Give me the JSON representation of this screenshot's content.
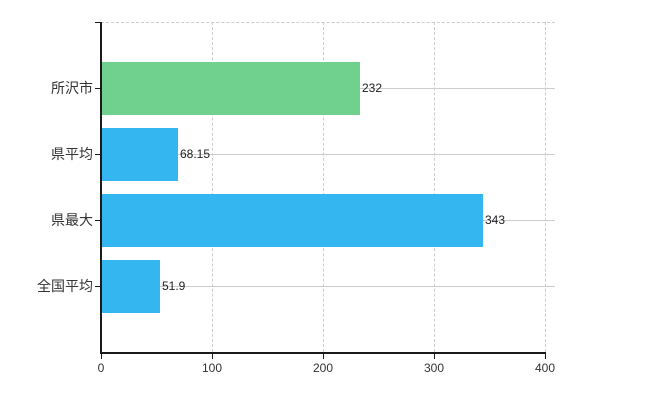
{
  "chart_data": {
    "type": "bar",
    "orientation": "horizontal",
    "title": "",
    "xlabel": "",
    "ylabel": "",
    "categories": [
      "所沢市",
      "県平均",
      "県最大",
      "全国平均"
    ],
    "values": [
      232,
      68.15,
      343,
      51.9
    ],
    "value_labels": [
      "232",
      "68.15",
      "343",
      "51.9"
    ],
    "bar_colors": [
      "#70d18e",
      "#34b7f0",
      "#34b7f0",
      "#34b7f0"
    ],
    "xlim": [
      0,
      400
    ],
    "xticks": [
      0,
      100,
      200,
      300,
      400
    ],
    "xtick_labels": [
      "0",
      "100",
      "200",
      "300",
      "400"
    ],
    "grid": true,
    "legend": false
  },
  "colors": {
    "background": "#ffffff",
    "grid": "#cccccc",
    "axis": "#1a1a1a",
    "text": "#333333",
    "value_text": "#222222"
  }
}
